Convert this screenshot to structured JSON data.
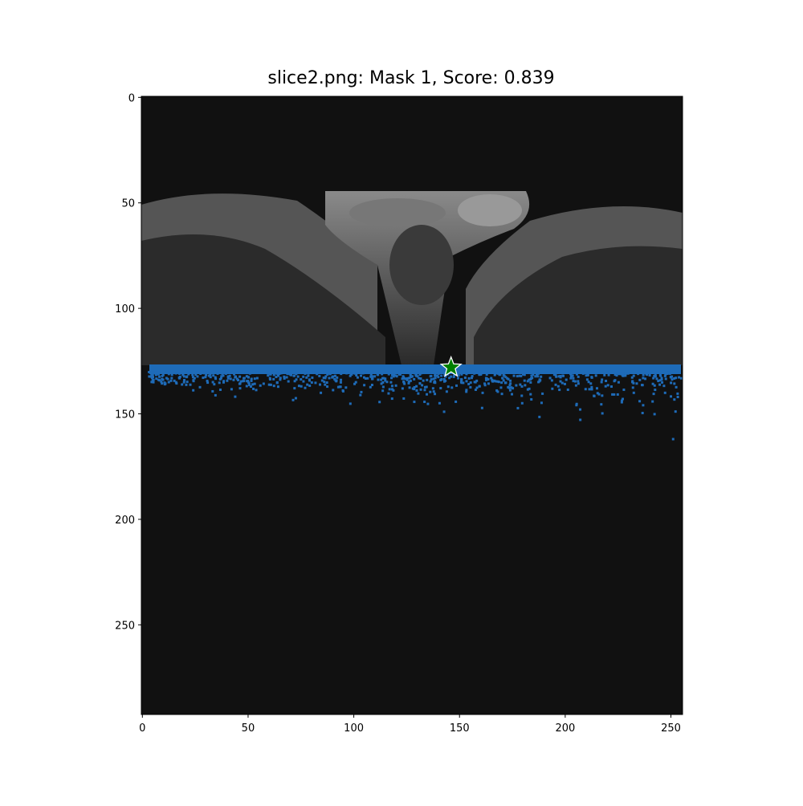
{
  "chart_data": {
    "type": "image",
    "title": "slice2.png: Mask 1, Score: 0.839",
    "xlim": [
      -0.5,
      255.5
    ],
    "ylim": [
      292.5,
      -0.5
    ],
    "xticks": [
      0,
      50,
      100,
      150,
      200,
      250
    ],
    "yticks": [
      0,
      50,
      100,
      150,
      200,
      250
    ],
    "points": [
      {
        "x": 146,
        "y": 128
      }
    ],
    "point_color": "#008000",
    "mask_color": "#1e6bb8"
  }
}
